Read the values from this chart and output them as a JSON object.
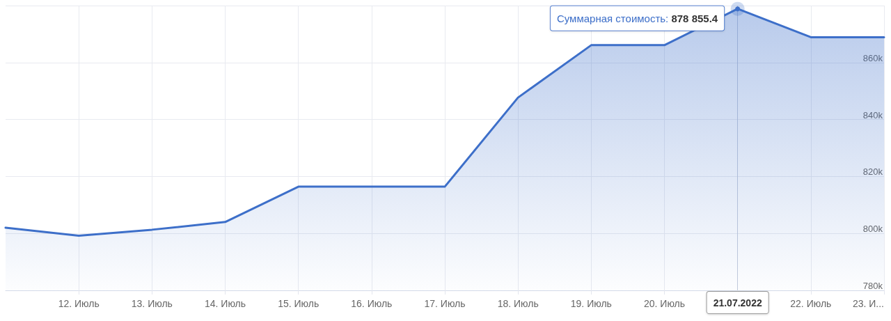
{
  "chart_data": {
    "type": "area",
    "x": [
      "2022-07-11",
      "2022-07-12",
      "2022-07-13",
      "2022-07-14",
      "2022-07-15",
      "2022-07-16",
      "2022-07-17",
      "2022-07-18",
      "2022-07-19",
      "2022-07-20",
      "2022-07-21",
      "2022-07-22",
      "2022-07-23"
    ],
    "values": [
      802000,
      799200,
      801300,
      804000,
      816400,
      816400,
      816400,
      847700,
      866100,
      866100,
      878855.4,
      868900,
      868900
    ],
    "color": "#3d6fc9",
    "xlim": [
      "2022-07-11",
      "2022-07-23"
    ],
    "xticks": [
      {
        "value": "2022-07-12",
        "label": "12. Июль"
      },
      {
        "value": "2022-07-13",
        "label": "13. Июль"
      },
      {
        "value": "2022-07-14",
        "label": "14. Июль"
      },
      {
        "value": "2022-07-15",
        "label": "15. Июль"
      },
      {
        "value": "2022-07-16",
        "label": "16. Июль"
      },
      {
        "value": "2022-07-17",
        "label": "17. Июль"
      },
      {
        "value": "2022-07-18",
        "label": "18. Июль"
      },
      {
        "value": "2022-07-19",
        "label": "19. Июль"
      },
      {
        "value": "2022-07-20",
        "label": "20. Июль"
      },
      {
        "value": "2022-07-21",
        "label": null
      },
      {
        "value": "2022-07-22",
        "label": "22. Июль"
      },
      {
        "value": "2022-07-23",
        "label": "23. И..."
      }
    ],
    "ylim": [
      780000,
      880000
    ],
    "yticks": [
      {
        "value": 780000,
        "label": "780k"
      },
      {
        "value": 800000,
        "label": "800k"
      },
      {
        "value": 820000,
        "label": "820k"
      },
      {
        "value": 840000,
        "label": "840k"
      },
      {
        "value": 860000,
        "label": "860k"
      },
      {
        "value": 880000,
        "label": null
      }
    ],
    "grid": true,
    "annotations": [
      {
        "text": "Суммарная стоимость: 878 855.4",
        "x": "2022-07-21",
        "y": 878855.4
      }
    ],
    "ref_lines": [
      {
        "axis": "x",
        "value": "2022-07-21",
        "label": "21.07.2022"
      }
    ]
  }
}
